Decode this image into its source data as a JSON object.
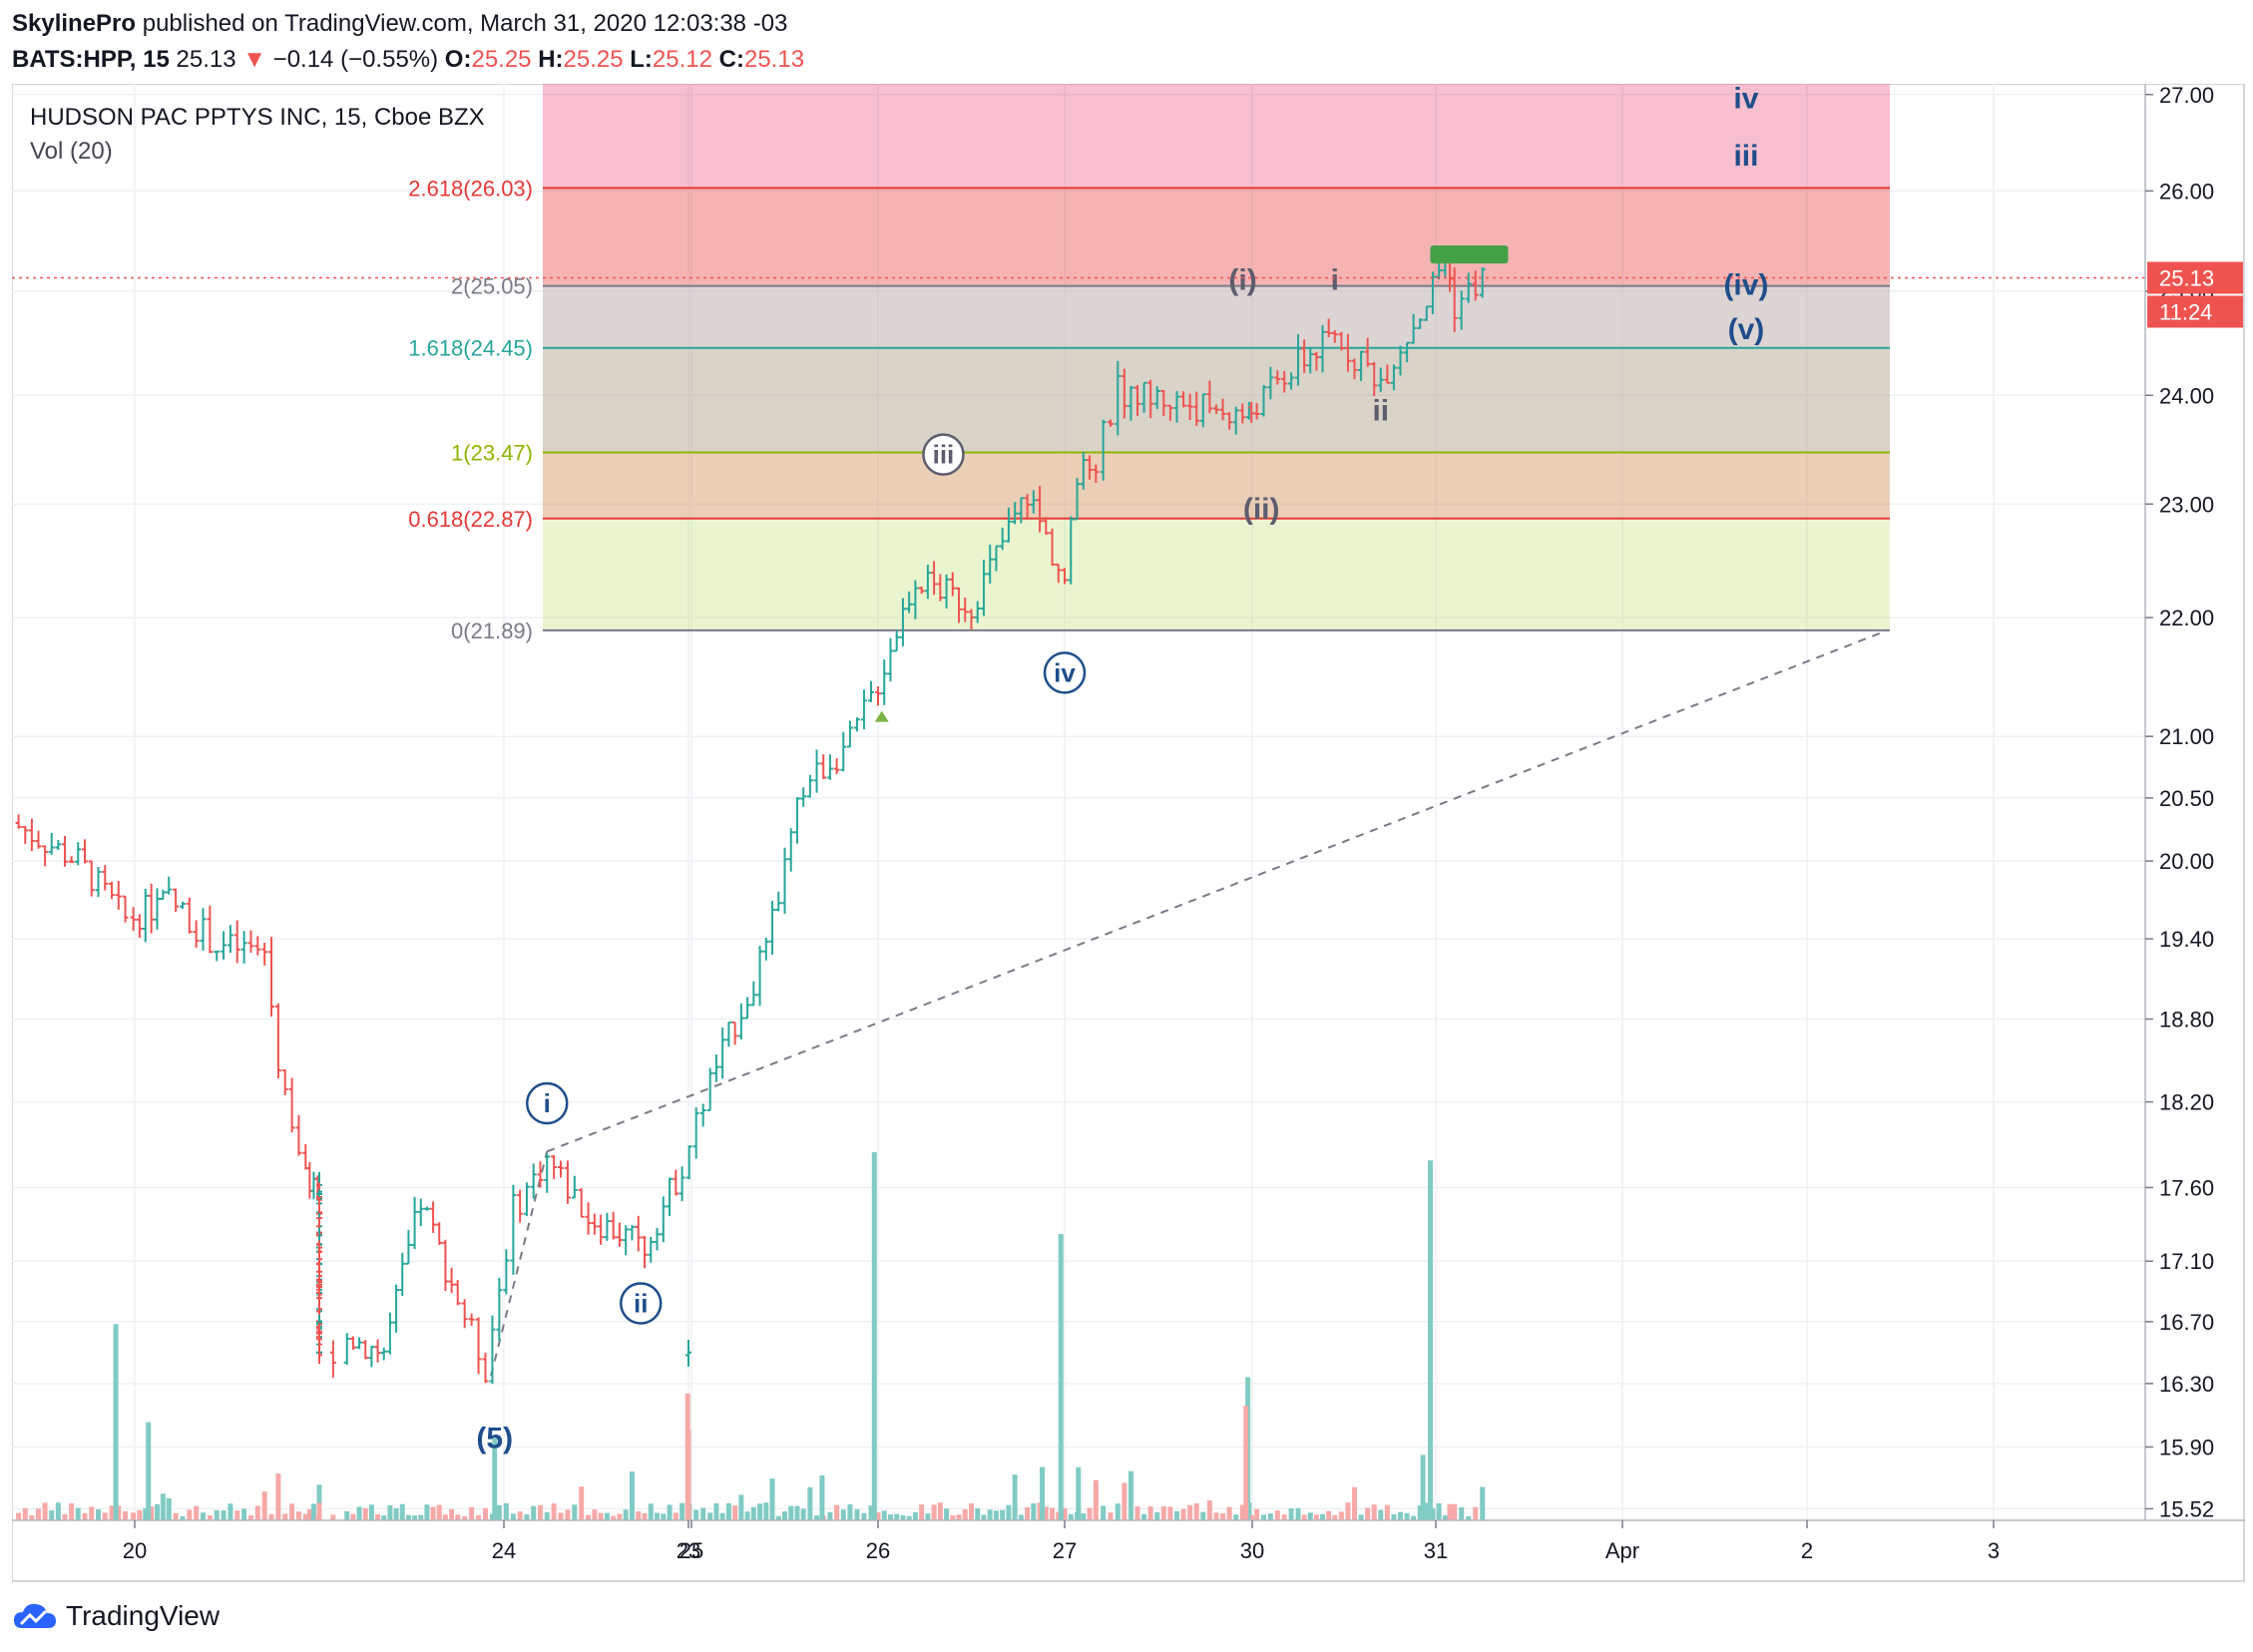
{
  "header": {
    "publisher": "SkylinePro",
    "published_text": "published on TradingView.com, March 31, 2020 12:03:38 -03",
    "symbol_interval": "BATS:HPP, 15",
    "last": "25.13",
    "change_icon": "down-triangle-icon",
    "change": "−0.14 (−0.55%)",
    "o_label": "O:",
    "o": "25.25",
    "h_label": "H:",
    "h": "25.25",
    "l_label": "L:",
    "l": "25.12",
    "c_label": "C:",
    "c": "25.13"
  },
  "legend": {
    "title": "HUDSON PAC PPTYS INC, 15, Cboe BZX",
    "volume": "Vol (20)"
  },
  "price_tag": {
    "value": "25.13",
    "countdown": "11:24"
  },
  "footer": {
    "brand": "TradingView",
    "logo_icon": "tradingview-cloud-icon"
  },
  "colors": {
    "up": "#26a69a",
    "down": "#ef5350",
    "vol_up": "#80cbc4",
    "vol_down": "#f7a9a7"
  },
  "chart_data": {
    "type": "candlestick",
    "y_scale": "log",
    "ylim": [
      15.45,
      27.05
    ],
    "price_ticks": [
      "27.00",
      "26.00",
      "25.00",
      "24.00",
      "23.00",
      "22.00",
      "21.00",
      "20.50",
      "20.00",
      "19.40",
      "18.80",
      "18.20",
      "17.60",
      "17.10",
      "16.70",
      "16.30",
      "15.90",
      "15.52"
    ],
    "x_ticks": [
      {
        "label": "20",
        "day": 20
      },
      {
        "label": "23",
        "day": 23
      },
      {
        "label": "24",
        "day": 24
      },
      {
        "label": "25",
        "day": 25
      },
      {
        "label": "26",
        "day": 26
      },
      {
        "label": "27",
        "day": 27
      },
      {
        "label": "30",
        "day": 30
      },
      {
        "label": "31",
        "day": 31
      },
      {
        "label": "Apr",
        "day": 32
      },
      {
        "label": "2",
        "day": 33
      },
      {
        "label": "3",
        "day": 34
      }
    ],
    "fib": [
      {
        "label": "2.618(26.03)",
        "value": 26.03,
        "color": "#e53935"
      },
      {
        "label": "2(25.05)",
        "value": 25.05,
        "color": "#787b86"
      },
      {
        "label": "1.618(24.45)",
        "value": 24.45,
        "color": "#26a69a"
      },
      {
        "label": "1(23.47)",
        "value": 23.47,
        "color": "#8db600"
      },
      {
        "label": "0.618(22.87)",
        "value": 22.87,
        "color": "#e53935"
      },
      {
        "label": "0(21.89)",
        "value": 21.89,
        "color": "#787b86"
      }
    ],
    "last_price": 25.13,
    "waves": [
      {
        "label": "i",
        "circled": true,
        "x": 24.23,
        "y": 18.19,
        "color": "#1e4e8c"
      },
      {
        "label": "ii",
        "circled": true,
        "x": 24.73,
        "y": 16.82,
        "color": "#1e4e8c"
      },
      {
        "label": "iii",
        "circled": true,
        "x": 26.35,
        "y": 23.45,
        "color": "#5d5d6e"
      },
      {
        "label": "iv",
        "circled": true,
        "x": 27.0,
        "y": 21.53,
        "color": "#1e4e8c"
      },
      {
        "label": "(5)",
        "circled": false,
        "x": 23.95,
        "y": 15.95,
        "color": "#1e4e8c"
      },
      {
        "label": "(i)",
        "circled": false,
        "x": 29.85,
        "y": 25.1,
        "color": "#5d5d6e"
      },
      {
        "label": "i",
        "circled": false,
        "x": 30.45,
        "y": 25.1,
        "color": "#5d5d6e"
      },
      {
        "label": "ii",
        "circled": false,
        "x": 30.7,
        "y": 23.85,
        "color": "#5d5d6e"
      },
      {
        "label": "(ii)",
        "circled": false,
        "x": 30.05,
        "y": 22.95,
        "color": "#5d5d6e"
      },
      {
        "label": "iv",
        "circled": false,
        "x": 32.67,
        "y": 26.95,
        "color": "#1e4e8c"
      },
      {
        "label": "iii",
        "circled": false,
        "x": 32.67,
        "y": 26.35,
        "color": "#1e4e8c"
      },
      {
        "label": "(iv)",
        "circled": false,
        "x": 32.67,
        "y": 25.05,
        "color": "#1e4e8c"
      },
      {
        "label": "(v)",
        "circled": false,
        "x": 32.67,
        "y": 24.62,
        "color": "#1e4e8c"
      }
    ],
    "dashed_line": {
      "from": {
        "x": 24.23,
        "y": 17.85
      },
      "to": {
        "x": 33.43,
        "y": 21.89
      }
    },
    "keypoints": [
      {
        "x": 19.35,
        "y": 20.3
      },
      {
        "x": 19.7,
        "y": 20.0
      },
      {
        "x": 19.95,
        "y": 19.55
      },
      {
        "x": 20.25,
        "y": 19.7
      },
      {
        "x": 20.6,
        "y": 19.35
      },
      {
        "x": 20.95,
        "y": 19.3
      },
      {
        "x": 21.05,
        "y": 18.5
      },
      {
        "x": 21.25,
        "y": 17.65
      },
      {
        "x": 23.0,
        "y": 16.45
      },
      {
        "x": 23.15,
        "y": 16.6
      },
      {
        "x": 23.35,
        "y": 16.5
      },
      {
        "x": 23.55,
        "y": 17.5
      },
      {
        "x": 23.75,
        "y": 16.85
      },
      {
        "x": 23.9,
        "y": 16.4
      },
      {
        "x": 24.05,
        "y": 17.45
      },
      {
        "x": 24.23,
        "y": 17.8
      },
      {
        "x": 24.45,
        "y": 17.4
      },
      {
        "x": 24.75,
        "y": 17.2
      },
      {
        "x": 24.95,
        "y": 17.75
      },
      {
        "x": 25.1,
        "y": 18.35
      },
      {
        "x": 25.4,
        "y": 19.3
      },
      {
        "x": 25.6,
        "y": 20.6
      },
      {
        "x": 25.85,
        "y": 20.95
      },
      {
        "x": 26.0,
        "y": 21.45
      },
      {
        "x": 26.2,
        "y": 22.35
      },
      {
        "x": 26.5,
        "y": 22.1
      },
      {
        "x": 26.8,
        "y": 23.1
      },
      {
        "x": 27.0,
        "y": 22.3
      },
      {
        "x": 27.2,
        "y": 23.2
      },
      {
        "x": 27.5,
        "y": 23.4
      },
      {
        "x": 27.85,
        "y": 24.05
      },
      {
        "x": 29.95,
        "y": 23.8
      },
      {
        "x": 30.25,
        "y": 24.3
      },
      {
        "x": 30.45,
        "y": 24.55
      },
      {
        "x": 30.7,
        "y": 24.15
      },
      {
        "x": 30.95,
        "y": 24.9
      },
      {
        "x": 31.05,
        "y": 25.35
      },
      {
        "x": 31.1,
        "y": 24.85
      },
      {
        "x": 31.25,
        "y": 25.13
      }
    ],
    "volume_spikes": [
      {
        "x": 19.9,
        "v": 0.48,
        "up": true
      },
      {
        "x": 20.1,
        "v": 0.24,
        "up": true
      },
      {
        "x": 23.0,
        "v": 0.22,
        "up": false
      },
      {
        "x": 23.95,
        "v": 0.2,
        "up": true
      },
      {
        "x": 24.98,
        "v": 0.31,
        "up": false
      },
      {
        "x": 25.98,
        "v": 0.9,
        "up": true
      },
      {
        "x": 26.98,
        "v": 0.7,
        "up": true
      },
      {
        "x": 29.93,
        "v": 0.35,
        "up": true
      },
      {
        "x": 29.9,
        "v": 0.28,
        "up": false
      },
      {
        "x": 30.97,
        "v": 0.88,
        "up": true
      },
      {
        "x": 30.93,
        "v": 0.16,
        "up": true
      },
      {
        "x": 25.7,
        "v": 0.11,
        "up": true
      },
      {
        "x": 26.88,
        "v": 0.13,
        "up": true
      },
      {
        "x": 27.22,
        "v": 0.13,
        "up": true
      }
    ]
  }
}
